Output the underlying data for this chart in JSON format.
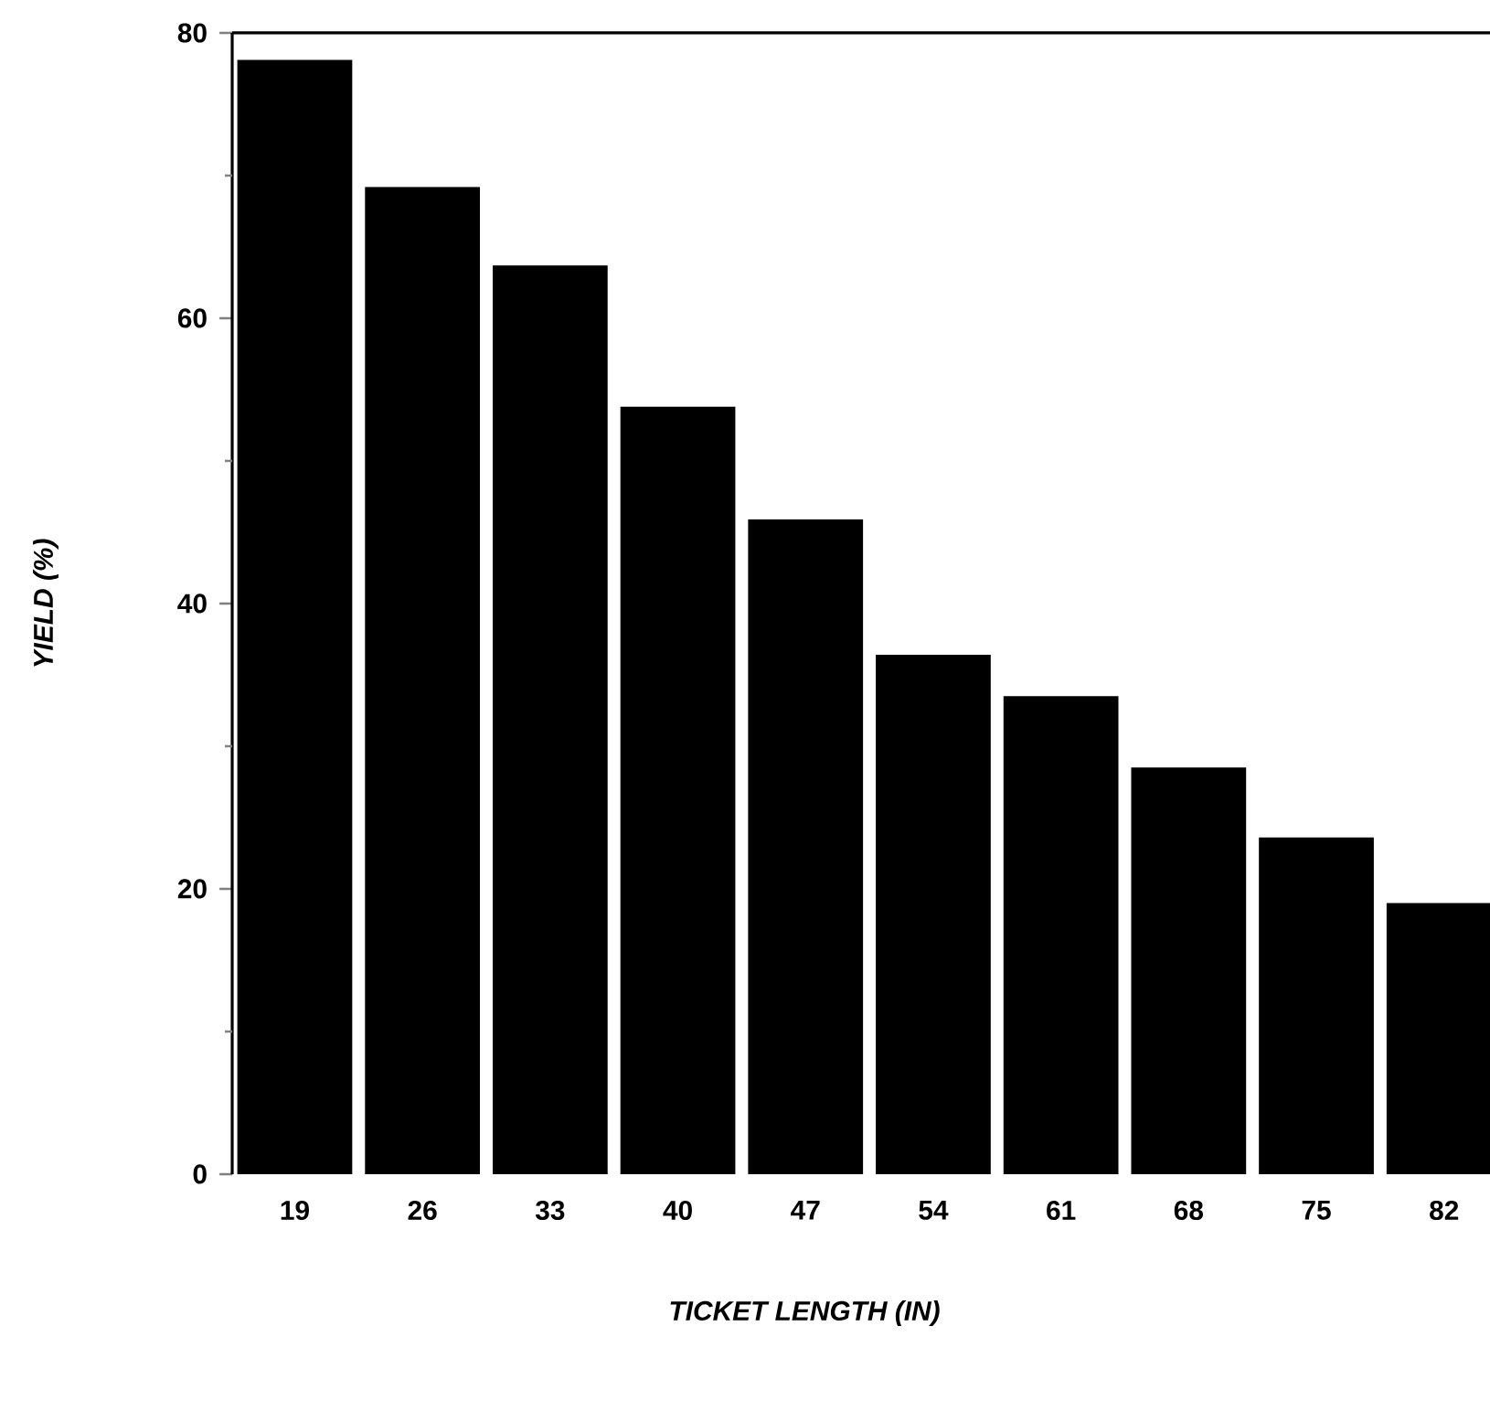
{
  "chart_data": {
    "type": "bar",
    "xlabel": "TICKET LENGTH (IN)",
    "ylabel": "YIELD (%)",
    "categories": [
      "19",
      "26",
      "33",
      "40",
      "47",
      "54",
      "61",
      "68",
      "75",
      "82"
    ],
    "values": [
      78.1,
      69.2,
      63.7,
      53.8,
      45.9,
      36.4,
      33.5,
      28.5,
      23.6,
      19.0
    ],
    "color": "#000000",
    "ylim": [
      0,
      80
    ],
    "yticks": [
      0,
      {
        "value": 10,
        "label": null
      },
      20,
      {
        "value": 30,
        "label": null
      },
      40,
      {
        "value": 50,
        "label": null
      },
      60,
      {
        "value": 70,
        "label": null
      },
      80
    ],
    "grid": false
  }
}
